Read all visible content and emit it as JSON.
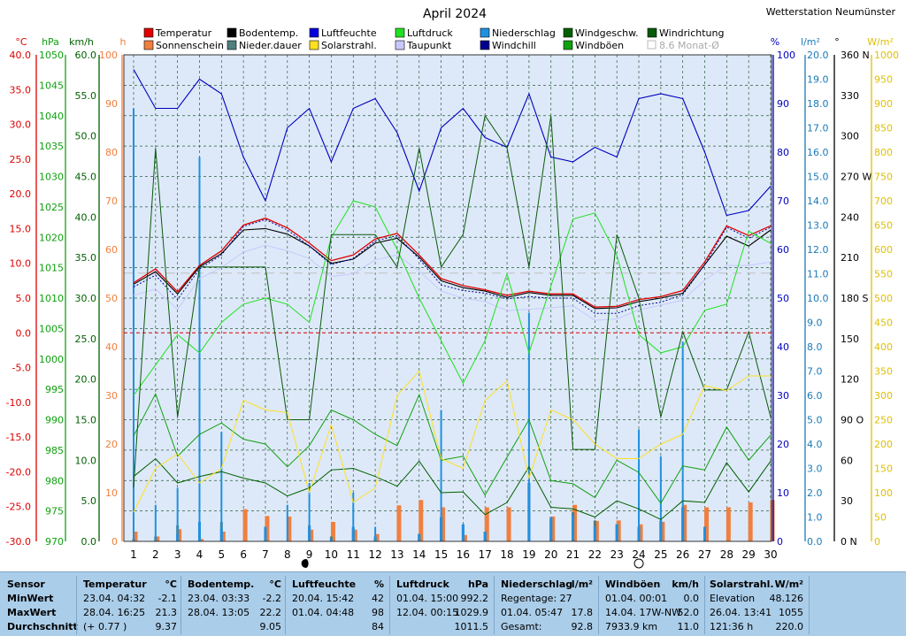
{
  "header": {
    "title": "April 2024",
    "station": "Wetterstation Neumünster"
  },
  "legend": [
    {
      "label": "Temperatur",
      "color": "#e00000"
    },
    {
      "label": "Sonnenschein",
      "color": "#f07f3f"
    },
    {
      "label": "Bodentemp.",
      "color": "#000000"
    },
    {
      "label": "Nieder.dauer",
      "color": "#4f7f7f"
    },
    {
      "label": "Luftfeuchte",
      "color": "#0000e0"
    },
    {
      "label": "Solarstrahl.",
      "color": "#ffe020"
    },
    {
      "label": "Luftdruck",
      "color": "#20e020"
    },
    {
      "label": "Taupunkt",
      "color": "#c8c8ff"
    },
    {
      "label": "Niederschlag",
      "color": "#2090e0"
    },
    {
      "label": "Windchill",
      "color": "#000090"
    },
    {
      "label": "Windgeschw.",
      "color": "#006000"
    },
    {
      "label": "Windböen",
      "color": "#10a010"
    },
    {
      "label": "Windrichtung",
      "color": "#0a5a0a"
    },
    {
      "label": "8.6 Monat-Ø",
      "color": "#c0c0c0",
      "disabled": true
    }
  ],
  "axes": {
    "temp": {
      "unit": "°C",
      "color": "#e00000",
      "ticks": [
        "40.0",
        "35.0",
        "30.0",
        "25.0",
        "20.0",
        "15.0",
        "10.0",
        "5.0",
        "0.0",
        "-5.0",
        "-10.0",
        "-15.0",
        "-20.0",
        "-25.0",
        "-30.0"
      ]
    },
    "pressure": {
      "unit": "hPa",
      "color": "#10a010",
      "ticks": [
        "1050",
        "1045",
        "1040",
        "1035",
        "1030",
        "1025",
        "1020",
        "1015",
        "1010",
        "1005",
        "1000",
        "995",
        "990",
        "985",
        "980",
        "975",
        "970"
      ]
    },
    "wind": {
      "unit": "km/h",
      "color": "#006000",
      "ticks": [
        "60.0",
        "55.0",
        "50.0",
        "45.0",
        "40.0",
        "35.0",
        "30.0",
        "25.0",
        "20.0",
        "15.0",
        "10.0",
        "5.0",
        "0.0"
      ]
    },
    "hours": {
      "unit": "h",
      "color": "#f07f3f",
      "ticks": [
        "100",
        "90",
        "80",
        "70",
        "60",
        "50",
        "40",
        "30",
        "20",
        "10",
        "0"
      ]
    },
    "humidity": {
      "unit": "%",
      "color": "#0000c0",
      "ticks": [
        "100",
        "90",
        "80",
        "70",
        "60",
        "50",
        "40",
        "30",
        "20",
        "10",
        "0"
      ]
    },
    "rain": {
      "unit": "l/m²",
      "color": "#1a7ab8",
      "ticks": [
        "20.0",
        "19.0",
        "18.0",
        "17.0",
        "16.0",
        "15.0",
        "14.0",
        "13.0",
        "12.0",
        "11.0",
        "10.0",
        "9.0",
        "8.0",
        "7.0",
        "6.0",
        "5.0",
        "4.0",
        "3.0",
        "2.0",
        "1.0",
        "0.0"
      ]
    },
    "direction": {
      "unit": "°",
      "color": "#000000",
      "ticks": [
        "360 N",
        "330",
        "300",
        "270 W",
        "240",
        "210",
        "180 S",
        "150",
        "120",
        "90 O",
        "60",
        "30",
        "0 N"
      ]
    },
    "solar": {
      "unit": "W/m²",
      "color": "#e0c000",
      "ticks": [
        "1000",
        "950",
        "900",
        "850",
        "800",
        "750",
        "700",
        "650",
        "600",
        "550",
        "500",
        "450",
        "400",
        "350",
        "300",
        "250",
        "200",
        "150",
        "100",
        "50",
        "0"
      ]
    },
    "x_ticks": [
      "1",
      "2",
      "3",
      "4",
      "5",
      "6",
      "7",
      "8",
      "9",
      "10",
      "11",
      "12",
      "13",
      "14",
      "15",
      "16",
      "17",
      "18",
      "19",
      "20",
      "21",
      "22",
      "23",
      "24",
      "25",
      "26",
      "27",
      "28",
      "29",
      "30"
    ]
  },
  "chart_data": {
    "type": "line",
    "x": [
      1,
      2,
      3,
      4,
      5,
      6,
      7,
      8,
      9,
      10,
      11,
      12,
      13,
      14,
      15,
      16,
      17,
      18,
      19,
      20,
      21,
      22,
      23,
      24,
      25,
      26,
      27,
      28,
      29,
      30
    ],
    "ylim_temp": [
      -30,
      40
    ],
    "ylim_pressure": [
      970,
      1050
    ],
    "ylim_wind": [
      0,
      60
    ],
    "ylim_hours": [
      0,
      100
    ],
    "ylim_humidity": [
      0,
      100
    ],
    "ylim_rain": [
      0,
      20
    ],
    "ylim_direction": [
      0,
      360
    ],
    "ylim_solar": [
      0,
      1000
    ],
    "series": [
      {
        "name": "Temperatur",
        "axis": "temp",
        "color": "#e00000",
        "width": 1.3,
        "values": [
          7.2,
          9.2,
          5.9,
          9.7,
          11.8,
          15.5,
          16.5,
          15.1,
          12.9,
          10.4,
          11.2,
          13.5,
          14.3,
          11.2,
          7.8,
          6.8,
          6.2,
          5.4,
          6.0,
          5.6,
          5.6,
          3.7,
          3.8,
          4.8,
          5.2,
          6.1,
          10.2,
          15.4,
          14.0,
          15.4
        ]
      },
      {
        "name": "Bodentemp.",
        "axis": "temp",
        "color": "#000000",
        "width": 1.1,
        "values": [
          7.0,
          8.8,
          5.6,
          9.5,
          11.4,
          14.8,
          15.0,
          14.2,
          12.5,
          10.0,
          10.6,
          12.9,
          13.6,
          10.9,
          7.5,
          6.5,
          6.0,
          5.1,
          5.8,
          5.4,
          5.4,
          3.5,
          3.6,
          4.5,
          5.0,
          5.7,
          9.8,
          13.9,
          12.5,
          14.8
        ]
      },
      {
        "name": "Windchill",
        "axis": "temp",
        "color": "#000090",
        "width": 1.0,
        "dash": "2,2",
        "values": [
          6.6,
          8.3,
          4.8,
          9.2,
          11.2,
          15.3,
          16.3,
          14.8,
          12.5,
          9.8,
          10.7,
          13.2,
          14.0,
          10.6,
          6.9,
          6.1,
          5.7,
          4.9,
          5.2,
          5.0,
          5.0,
          2.8,
          2.8,
          3.9,
          4.4,
          5.5,
          9.8,
          15.2,
          13.6,
          15.2
        ]
      },
      {
        "name": "Taupunkt",
        "axis": "temp",
        "color": "#c8c8ff",
        "width": 1.0,
        "values": [
          5.4,
          6.3,
          3.4,
          7.8,
          9.4,
          11.6,
          12.6,
          11.8,
          10.7,
          8.1,
          8.5,
          10.5,
          11.2,
          8.9,
          6.0,
          5.0,
          4.5,
          3.2,
          3.4,
          3.6,
          3.9,
          1.8,
          2.0,
          3.3,
          4.0,
          4.7,
          7.6,
          9.7,
          9.7,
          10.2
        ]
      },
      {
        "name": "Luftfeuchte",
        "axis": "humidity",
        "color": "#0000c0",
        "width": 1.1,
        "values": [
          97,
          89,
          89,
          95,
          92,
          79,
          70,
          85,
          89,
          78,
          89,
          91,
          84,
          72,
          85,
          89,
          83,
          81,
          92,
          79,
          78,
          81,
          79,
          91,
          92,
          91,
          80,
          67,
          68,
          73
        ]
      },
      {
        "name": "Luftdruck",
        "axis": "pressure",
        "color": "#20e020",
        "width": 1.0,
        "values": [
          994,
          999,
          1004,
          1001,
          1006,
          1009,
          1010,
          1009,
          1006,
          1020,
          1026,
          1025,
          1018,
          1010,
          1003,
          996,
          1003,
          1014,
          1001,
          1012,
          1023,
          1024,
          1017,
          1004,
          1001,
          1002,
          1008,
          1009,
          1021,
          1019
        ]
      },
      {
        "name": "Windgeschw.",
        "axis": "wind",
        "color": "#006000",
        "width": 1.0,
        "values": [
          8.0,
          10.2,
          7.2,
          8.0,
          8.6,
          7.8,
          7.2,
          5.6,
          6.6,
          8.8,
          9.0,
          8.0,
          6.8,
          9.9,
          6.0,
          6.1,
          3.3,
          4.8,
          9.2,
          4.2,
          4.0,
          3.0,
          5.0,
          4.0,
          2.7,
          5.0,
          4.8,
          9.7,
          6.1,
          9.9
        ]
      },
      {
        "name": "Windböen",
        "axis": "wind",
        "color": "#10a010",
        "width": 1.0,
        "values": [
          13.0,
          18.2,
          10.5,
          13.2,
          14.6,
          12.6,
          12.0,
          9.2,
          11.8,
          16.2,
          15.0,
          13.2,
          11.8,
          18.1,
          10.0,
          10.5,
          5.7,
          10.4,
          15.0,
          7.5,
          7.1,
          5.4,
          10.0,
          8.5,
          4.7,
          9.3,
          8.8,
          14.1,
          10.0,
          13.1
        ]
      },
      {
        "name": "Windrichtung",
        "axis": "direction",
        "color": "#0a5a0a",
        "width": 1.0,
        "values": [
          40,
          291,
          92,
          203,
          203,
          203,
          203,
          90,
          90,
          227,
          227,
          227,
          203,
          291,
          203,
          227,
          315,
          291,
          203,
          315,
          68,
          68,
          227,
          180,
          92,
          155,
          112,
          112,
          155,
          92
        ]
      },
      {
        "name": "Solarstrahl.",
        "axis": "solar",
        "color": "#ffe020",
        "width": 1.0,
        "values": [
          60,
          150,
          180,
          120,
          150,
          290,
          270,
          265,
          100,
          240,
          80,
          110,
          300,
          350,
          170,
          150,
          290,
          330,
          130,
          270,
          250,
          200,
          170,
          170,
          200,
          220,
          320,
          310,
          340,
          340
        ]
      }
    ],
    "bars": [
      {
        "name": "Sonnenschein",
        "axis": "hours",
        "color": "#f07f3f",
        "width": 5,
        "values": [
          2.0,
          1.0,
          2.5,
          0.5,
          2.0,
          6.6,
          5.2,
          5.1,
          2.4,
          4.0,
          2.4,
          1.5,
          7.4,
          8.5,
          7.0,
          1.3,
          7.0,
          7.0,
          0.0,
          5.1,
          7.5,
          4.2,
          4.3,
          3.5,
          4.0,
          7.5,
          7.0,
          7.0,
          8.0,
          8.5
        ]
      },
      {
        "name": "Nieder.dauer",
        "axis": "hours",
        "color": "#4f7f7f",
        "width": 3,
        "values": [
          0.5,
          1.0,
          3.3,
          4.0,
          4.0,
          0.0,
          3.0,
          0.0,
          3.3,
          1.0,
          2.5,
          1.0,
          0.0,
          1.5,
          4.8,
          3.5,
          2.0,
          0.0,
          12.0,
          4.6,
          6.0,
          4.3,
          3.5,
          3.0,
          4.3,
          7.0,
          3.0,
          0.0,
          0.0,
          0.0
        ]
      },
      {
        "name": "Niederschlag",
        "axis": "rain",
        "color": "#2090e0",
        "width": 3,
        "values": [
          0.0,
          0.0,
          0.3,
          0.8,
          0.5,
          0.0,
          0.6,
          0.0,
          0.6,
          0.1,
          0.6,
          0.2,
          0.0,
          0.3,
          1.0,
          0.7,
          0.4,
          0.0,
          2.4,
          1.0,
          1.1,
          0.6,
          0.7,
          0.6,
          0.8,
          1.4,
          0.6,
          0.0,
          0.0,
          0.0
        ]
      },
      {
        "name": "Niederschlag (max)",
        "axis": "rain",
        "color": "#2090e0",
        "width": 2,
        "values": [
          17.8,
          1.5,
          2.2,
          15.8,
          4.5,
          0.0,
          0.0,
          1.5,
          2.4,
          0.0,
          2.0,
          0.6,
          0.0,
          0.0,
          5.4,
          0.0,
          0.0,
          0.0,
          9.4,
          0.0,
          0.0,
          0.0,
          0.0,
          4.6,
          3.5,
          8.2,
          0.0,
          0.0,
          0.0,
          0.0
        ]
      }
    ],
    "reference_lines": [
      {
        "axis": "temp",
        "value": 0.0,
        "color": "#e00000",
        "dash": "4,3"
      },
      {
        "axis": "temp",
        "value": 8.6,
        "color": "#c0c0c0",
        "dash": "10,6"
      }
    ],
    "markers": [
      {
        "x": 9,
        "symbol": "new-moon"
      },
      {
        "x": 24,
        "symbol": "full-moon"
      }
    ]
  },
  "stats": {
    "rows": [
      "Sensor",
      "MinWert",
      "MaxWert",
      "Durchschnitt"
    ],
    "blocks": [
      {
        "title": "Temperatur",
        "unit": "°C",
        "rows": [
          {
            "left": "23.04.  04:32",
            "right": "-2.1"
          },
          {
            "left": "28.04.  16:25",
            "right": "21.3"
          },
          {
            "left": "(+ 0.77 )",
            "right": "9.37"
          }
        ]
      },
      {
        "title": "Bodentemp.",
        "unit": "°C",
        "rows": [
          {
            "left": "23.04.  03:33",
            "right": "-2.2"
          },
          {
            "left": "28.04.  13:05",
            "right": "22.2"
          },
          {
            "left": "",
            "right": "9.05"
          }
        ]
      },
      {
        "title": "Luftfeuchte",
        "unit": "%",
        "rows": [
          {
            "left": "20.04.  15:42",
            "right": "42"
          },
          {
            "left": "01.04.  04:48",
            "right": "98"
          },
          {
            "left": "",
            "right": "84"
          }
        ]
      },
      {
        "title": "Luftdruck",
        "unit": "hPa",
        "rows": [
          {
            "left": "01.04.  15:00",
            "right": "992.2"
          },
          {
            "left": "12.04.  00:15",
            "right": "1029.9"
          },
          {
            "left": "",
            "right": "1011.5"
          }
        ]
      },
      {
        "title": "Niederschlag",
        "unit": "l/m²",
        "rows": [
          {
            "left": "Regentage: 27",
            "right": ""
          },
          {
            "left": "01.04.  05:47",
            "right": "17.8"
          },
          {
            "left": "Gesamt:",
            "right": "92.8"
          }
        ]
      },
      {
        "title": "Windböen",
        "unit": "km/h",
        "rows": [
          {
            "left": "01.04.  00:01",
            "right": "0.0"
          },
          {
            "left": "14.04.  17W-NW",
            "right": "52.0"
          },
          {
            "left": "7933.9 km",
            "right": "11.0"
          }
        ]
      },
      {
        "title": "Solarstrahl.",
        "unit": "W/m²",
        "rows": [
          {
            "left": "Elevation",
            "right": "48.126"
          },
          {
            "left": "26.04.  13:41",
            "right": "1055"
          },
          {
            "left": "121:36 h",
            "right": "220.0"
          }
        ]
      }
    ]
  }
}
